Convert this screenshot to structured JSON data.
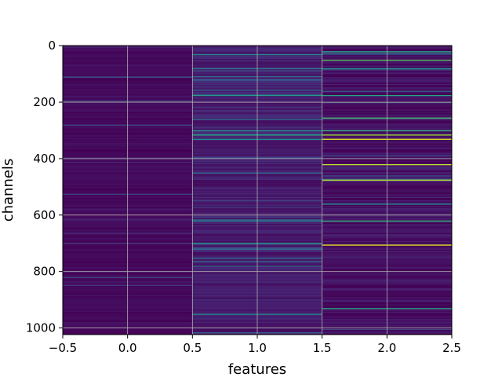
{
  "chart_data": {
    "type": "heatmap",
    "title": "",
    "xlabel": "features",
    "ylabel": "channels",
    "x_categories": [
      0,
      1,
      2
    ],
    "n_rows": 1024,
    "xlim": [
      -0.5,
      2.5
    ],
    "ylim": [
      1023.5,
      -0.5
    ],
    "y_inverted": true,
    "x_ticks": [
      -0.5,
      0.0,
      0.5,
      1.0,
      1.5,
      2.0,
      2.5
    ],
    "x_tick_labels": [
      "−0.5",
      "0.0",
      "0.5",
      "1.0",
      "1.5",
      "2.0",
      "2.5"
    ],
    "y_ticks": [
      0,
      200,
      400,
      600,
      800,
      1000
    ],
    "y_tick_labels": [
      "0",
      "200",
      "400",
      "600",
      "800",
      "1000"
    ],
    "grid": true,
    "colormap": "viridis",
    "vmin": 0,
    "vmax": 1,
    "column_baseline": [
      0.03,
      0.1,
      0.05
    ],
    "bright_rows": [
      {
        "col": 0,
        "row": 110,
        "value": 0.25
      },
      {
        "col": 0,
        "row": 195,
        "value": 0.2
      },
      {
        "col": 0,
        "row": 280,
        "value": 0.22
      },
      {
        "col": 0,
        "row": 525,
        "value": 0.2
      },
      {
        "col": 0,
        "row": 700,
        "value": 0.18
      },
      {
        "col": 0,
        "row": 820,
        "value": 0.2
      },
      {
        "col": 1,
        "row": 30,
        "value": 0.45
      },
      {
        "col": 1,
        "row": 80,
        "value": 0.4
      },
      {
        "col": 1,
        "row": 175,
        "value": 0.55
      },
      {
        "col": 1,
        "row": 300,
        "value": 0.5
      },
      {
        "col": 1,
        "row": 315,
        "value": 0.6
      },
      {
        "col": 1,
        "row": 330,
        "value": 0.5
      },
      {
        "col": 1,
        "row": 450,
        "value": 0.35
      },
      {
        "col": 1,
        "row": 620,
        "value": 0.4
      },
      {
        "col": 1,
        "row": 700,
        "value": 0.55
      },
      {
        "col": 1,
        "row": 950,
        "value": 0.45
      },
      {
        "col": 2,
        "row": 20,
        "value": 0.6
      },
      {
        "col": 2,
        "row": 50,
        "value": 0.75
      },
      {
        "col": 2,
        "row": 80,
        "value": 0.5
      },
      {
        "col": 2,
        "row": 175,
        "value": 0.6
      },
      {
        "col": 2,
        "row": 255,
        "value": 0.7
      },
      {
        "col": 2,
        "row": 300,
        "value": 0.65
      },
      {
        "col": 2,
        "row": 315,
        "value": 0.85
      },
      {
        "col": 2,
        "row": 330,
        "value": 0.95
      },
      {
        "col": 2,
        "row": 420,
        "value": 0.9
      },
      {
        "col": 2,
        "row": 475,
        "value": 0.9
      },
      {
        "col": 2,
        "row": 560,
        "value": 0.45
      },
      {
        "col": 2,
        "row": 620,
        "value": 0.65
      },
      {
        "col": 2,
        "row": 705,
        "value": 0.95
      },
      {
        "col": 2,
        "row": 930,
        "value": 0.6
      }
    ]
  }
}
